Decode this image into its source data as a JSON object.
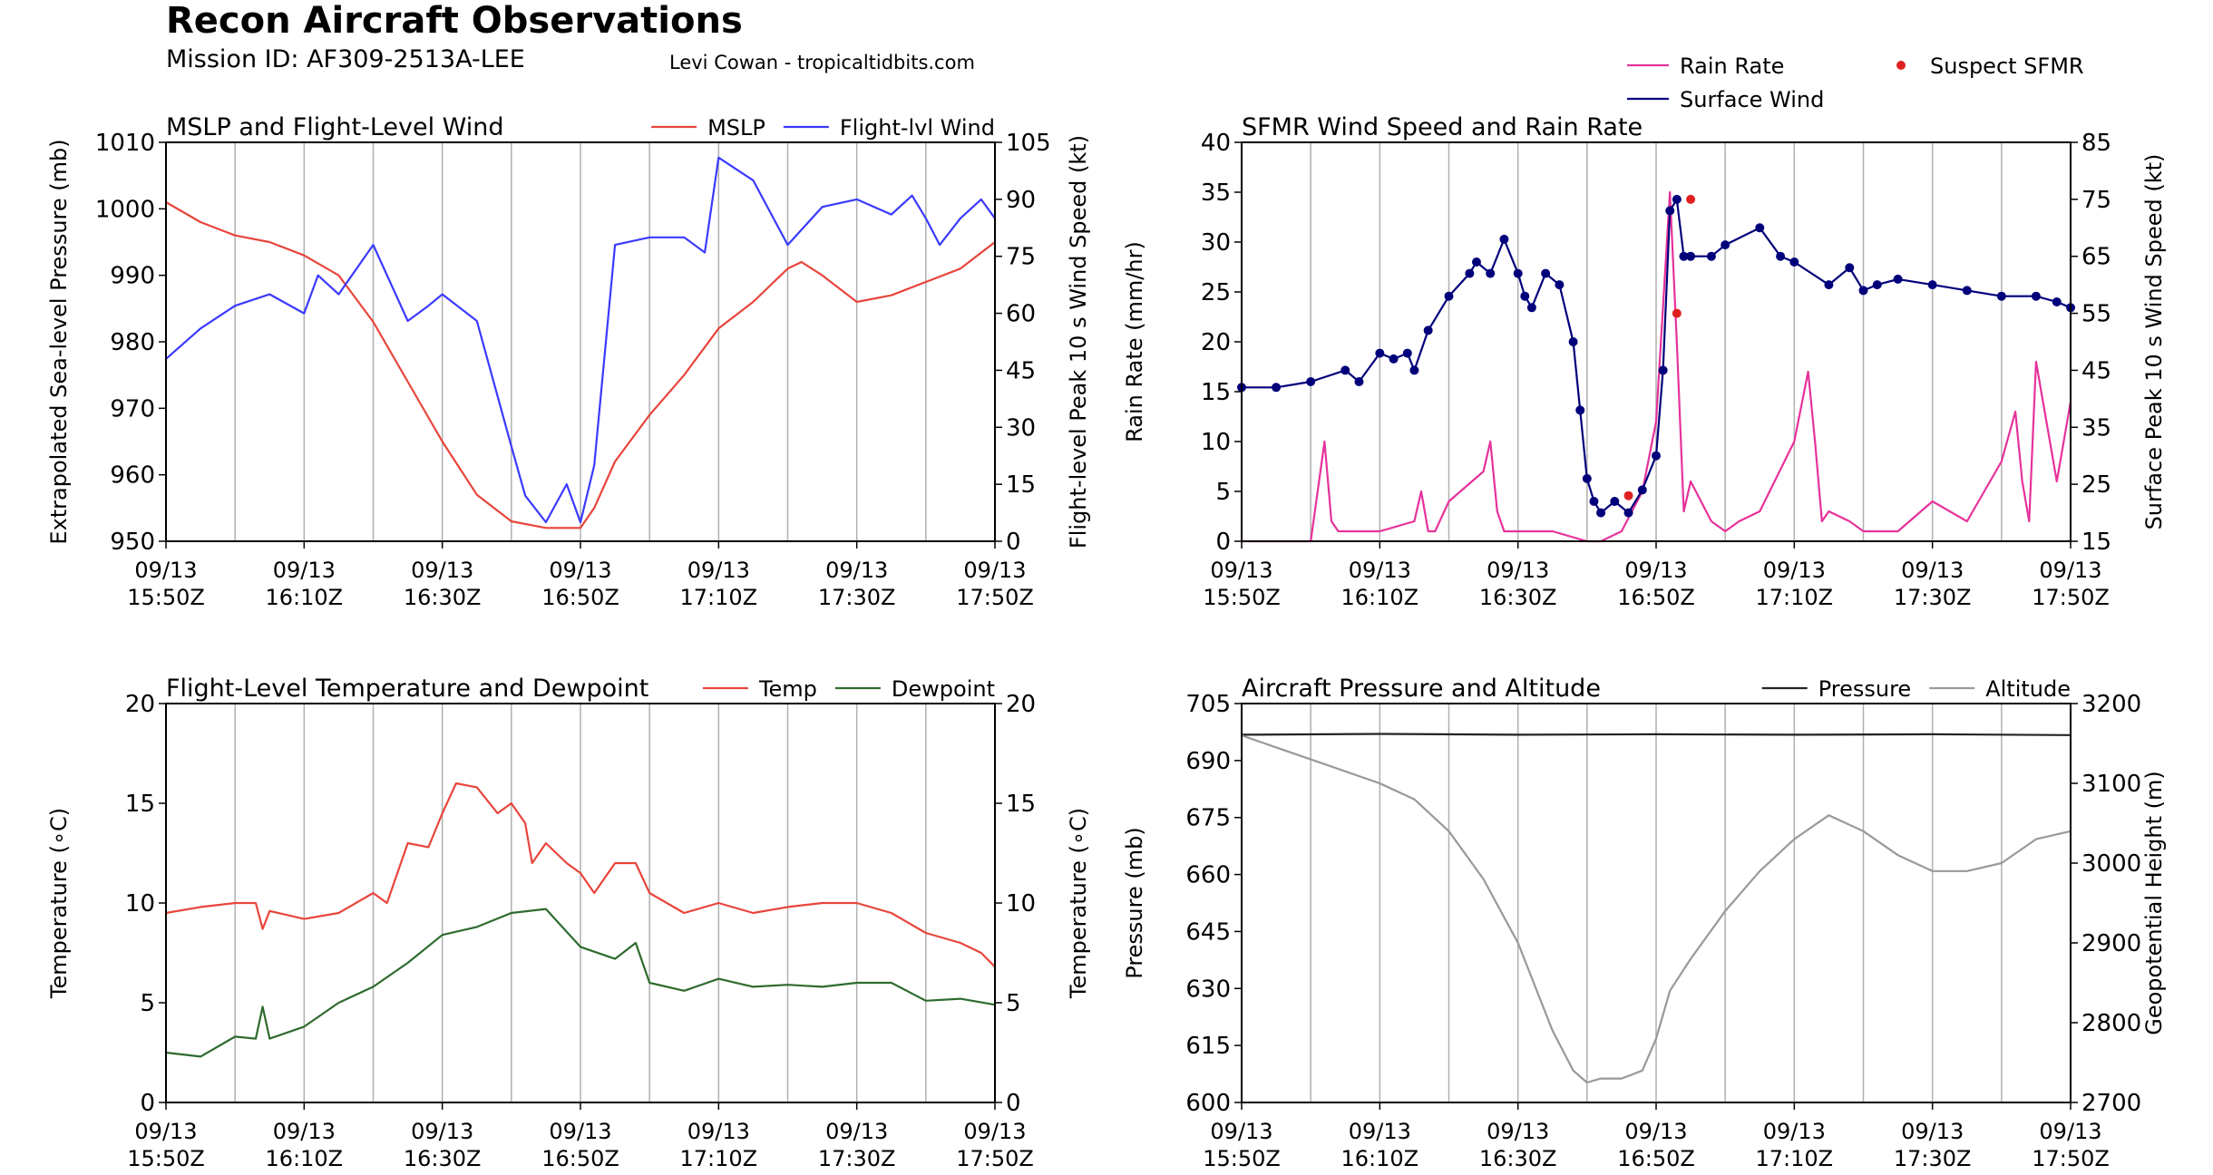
{
  "page": {
    "title": "Recon Aircraft Observations",
    "mission": "Mission ID: AF309-2513A-LEE",
    "credit": "Levi Cowan - tropicaltidbits.com"
  },
  "colors": {
    "mslp": "#e8453c",
    "flight_wind": "#3a3aff",
    "rain_rate": "#e6329b",
    "surface_wind": "#00007a",
    "suspect_sfmr": "#e02020",
    "temp": "#e8453c",
    "dewpoint": "#2e6b2e",
    "pressure": "#222222",
    "altitude": "#999999",
    "grid": "#b0b0b0"
  },
  "x_ticks": [
    [
      "09/13",
      "15:50Z"
    ],
    [
      "09/13",
      "16:10Z"
    ],
    [
      "09/13",
      "16:30Z"
    ],
    [
      "09/13",
      "16:50Z"
    ],
    [
      "09/13",
      "17:10Z"
    ],
    [
      "09/13",
      "17:30Z"
    ],
    [
      "09/13",
      "17:50Z"
    ]
  ],
  "chart_data": [
    {
      "type": "line",
      "title": "MSLP and Flight-Level Wind",
      "xlabel": "",
      "x_unit": "minutes after 15:50Z",
      "xlim": [
        0,
        120
      ],
      "ylabel": "Extrapolated Sea-level Pressure (mb)",
      "ylim": [
        950,
        1010
      ],
      "yticks": [
        950,
        960,
        970,
        980,
        990,
        1000,
        1010
      ],
      "y2label": "Flight-level Peak 10 s Wind Speed (kt)",
      "y2lim": [
        0,
        105
      ],
      "y2ticks": [
        0,
        15,
        30,
        45,
        60,
        75,
        90,
        105
      ],
      "legend": "top-right",
      "series": [
        {
          "name": "MSLP",
          "axis": "left",
          "color_key": "mslp",
          "x": [
            0,
            5,
            10,
            15,
            20,
            25,
            30,
            35,
            40,
            45,
            50,
            55,
            60,
            62,
            65,
            70,
            75,
            80,
            85,
            90,
            92,
            95,
            100,
            105,
            110,
            115,
            120
          ],
          "y": [
            1001,
            998,
            996,
            995,
            993,
            990,
            983,
            974,
            965,
            957,
            953,
            952,
            952,
            955,
            962,
            969,
            975,
            982,
            986,
            991,
            992,
            990,
            986,
            987,
            989,
            991,
            995
          ]
        },
        {
          "name": "Flight-lvl Wind",
          "axis": "right",
          "color_key": "flight_wind",
          "x": [
            0,
            5,
            10,
            15,
            20,
            22,
            25,
            30,
            35,
            38,
            40,
            45,
            50,
            52,
            55,
            58,
            60,
            62,
            65,
            70,
            75,
            78,
            80,
            85,
            90,
            95,
            100,
            105,
            108,
            110,
            112,
            115,
            118,
            120
          ],
          "y": [
            48,
            56,
            62,
            65,
            60,
            70,
            65,
            78,
            58,
            62,
            65,
            58,
            25,
            12,
            5,
            15,
            5,
            20,
            78,
            80,
            80,
            76,
            101,
            95,
            78,
            88,
            90,
            86,
            91,
            85,
            78,
            85,
            90,
            85
          ]
        }
      ]
    },
    {
      "type": "line",
      "title": "SFMR Wind Speed and Rain Rate",
      "xlabel": "",
      "x_unit": "minutes after 15:50Z",
      "xlim": [
        0,
        120
      ],
      "ylabel": "Rain Rate (mm/hr)",
      "ylim": [
        0,
        40
      ],
      "yticks": [
        0,
        5,
        10,
        15,
        20,
        25,
        30,
        35,
        40
      ],
      "y2label": "Surface Peak 10 s Wind Speed (kt)",
      "y2lim": [
        15,
        85
      ],
      "y2ticks": [
        15,
        25,
        35,
        45,
        55,
        65,
        75,
        85
      ],
      "legend": "top-right",
      "series": [
        {
          "name": "Rain Rate",
          "axis": "left",
          "color_key": "rain_rate",
          "x": [
            0,
            10,
            12,
            13,
            14,
            15,
            20,
            25,
            26,
            27,
            28,
            30,
            35,
            36,
            37,
            38,
            40,
            45,
            50,
            52,
            55,
            58,
            60,
            62,
            63,
            64,
            65,
            68,
            70,
            72,
            75,
            80,
            82,
            83,
            84,
            85,
            88,
            90,
            95,
            100,
            105,
            110,
            112,
            113,
            114,
            115,
            118,
            120
          ],
          "y": [
            0,
            0,
            10,
            2,
            1,
            1,
            1,
            2,
            5,
            1,
            1,
            4,
            7,
            10,
            3,
            1,
            1,
            1,
            0,
            0,
            1,
            5,
            12,
            35,
            20,
            3,
            6,
            2,
            1,
            2,
            3,
            10,
            17,
            10,
            2,
            3,
            2,
            1,
            1,
            4,
            2,
            8,
            13,
            6,
            2,
            18,
            6,
            14
          ]
        },
        {
          "name": "Surface Wind",
          "axis": "right",
          "color_key": "surface_wind",
          "x": [
            0,
            5,
            10,
            15,
            17,
            20,
            22,
            24,
            25,
            27,
            30,
            33,
            34,
            36,
            38,
            40,
            41,
            42,
            44,
            46,
            48,
            49,
            50,
            51,
            52,
            54,
            56,
            58,
            60,
            61,
            62,
            63,
            64,
            65,
            68,
            70,
            75,
            78,
            80,
            85,
            88,
            90,
            92,
            95,
            100,
            105,
            110,
            115,
            118,
            120
          ],
          "y": [
            42,
            42,
            43,
            45,
            43,
            48,
            47,
            48,
            45,
            52,
            58,
            62,
            64,
            62,
            68,
            62,
            58,
            56,
            62,
            60,
            50,
            38,
            26,
            22,
            20,
            22,
            20,
            24,
            30,
            45,
            73,
            75,
            65,
            65,
            65,
            67,
            70,
            65,
            64,
            60,
            63,
            59,
            60,
            61,
            60,
            59,
            58,
            58,
            57,
            56
          ]
        },
        {
          "name": "Suspect SFMR",
          "axis": "right",
          "color_key": "suspect_sfmr",
          "style": "dot",
          "x": [
            56,
            63,
            65
          ],
          "y": [
            23,
            55,
            75
          ]
        }
      ]
    },
    {
      "type": "line",
      "title": "Flight-Level Temperature and Dewpoint",
      "xlabel": "",
      "x_unit": "minutes after 15:50Z",
      "xlim": [
        0,
        120
      ],
      "ylabel": "Temperature (∘C)",
      "ylim": [
        0,
        20
      ],
      "yticks": [
        0,
        5,
        10,
        15,
        20
      ],
      "y2label": "Temperature (∘C)",
      "y2lim": [
        0,
        20
      ],
      "y2ticks": [
        0,
        5,
        10,
        15,
        20
      ],
      "legend": "top-right",
      "series": [
        {
          "name": "Temp",
          "axis": "left",
          "color_key": "temp",
          "x": [
            0,
            5,
            10,
            13,
            14,
            15,
            20,
            25,
            30,
            32,
            35,
            38,
            40,
            42,
            45,
            48,
            50,
            52,
            53,
            55,
            58,
            60,
            62,
            65,
            68,
            70,
            75,
            80,
            85,
            90,
            95,
            100,
            105,
            110,
            115,
            118,
            120
          ],
          "y": [
            9.5,
            9.8,
            10,
            10,
            8.7,
            9.6,
            9.2,
            9.5,
            10.5,
            10,
            13,
            12.8,
            14.5,
            16,
            15.8,
            14.5,
            15,
            14,
            12,
            13,
            12,
            11.5,
            10.5,
            12,
            12,
            10.5,
            9.5,
            10,
            9.5,
            9.8,
            10,
            10,
            9.5,
            8.5,
            8,
            7.5,
            6.8
          ]
        },
        {
          "name": "Dewpoint",
          "axis": "left",
          "color_key": "dewpoint",
          "x": [
            0,
            5,
            10,
            13,
            14,
            15,
            20,
            25,
            30,
            35,
            40,
            45,
            50,
            55,
            60,
            65,
            68,
            70,
            75,
            80,
            85,
            90,
            95,
            100,
            105,
            110,
            115,
            120
          ],
          "y": [
            2.5,
            2.3,
            3.3,
            3.2,
            4.8,
            3.2,
            3.8,
            5,
            5.8,
            7,
            8.4,
            8.8,
            9.5,
            9.7,
            7.8,
            7.2,
            8,
            6,
            5.6,
            6.2,
            5.8,
            5.9,
            5.8,
            6,
            6,
            5.1,
            5.2,
            4.9
          ]
        }
      ]
    },
    {
      "type": "line",
      "title": "Aircraft Pressure and Altitude",
      "xlabel": "",
      "x_unit": "minutes after 15:50Z",
      "xlim": [
        0,
        120
      ],
      "ylabel": "Pressure (mb)",
      "ylim": [
        600,
        705
      ],
      "yticks": [
        600,
        615,
        630,
        645,
        660,
        675,
        690,
        705
      ],
      "y2label": "Geopotential Height (m)",
      "y2lim": [
        2700,
        3200
      ],
      "y2ticks": [
        2700,
        2800,
        2900,
        3000,
        3100,
        3200
      ],
      "legend": "top-right",
      "series": [
        {
          "name": "Pressure",
          "axis": "left",
          "color_key": "pressure",
          "x": [
            0,
            20,
            40,
            60,
            80,
            100,
            120
          ],
          "y": [
            696.8,
            697,
            696.8,
            696.9,
            696.8,
            696.9,
            696.7
          ]
        },
        {
          "name": "Altitude",
          "axis": "right",
          "color_key": "altitude",
          "x": [
            0,
            10,
            20,
            25,
            30,
            35,
            40,
            45,
            48,
            50,
            52,
            55,
            58,
            60,
            62,
            65,
            70,
            75,
            80,
            85,
            90,
            95,
            100,
            105,
            110,
            115,
            120
          ],
          "y": [
            3160,
            3130,
            3100,
            3080,
            3040,
            2980,
            2900,
            2790,
            2740,
            2725,
            2730,
            2730,
            2740,
            2780,
            2840,
            2880,
            2940,
            2990,
            3030,
            3060,
            3040,
            3010,
            2990,
            2990,
            3000,
            3030,
            3040
          ]
        }
      ]
    }
  ]
}
